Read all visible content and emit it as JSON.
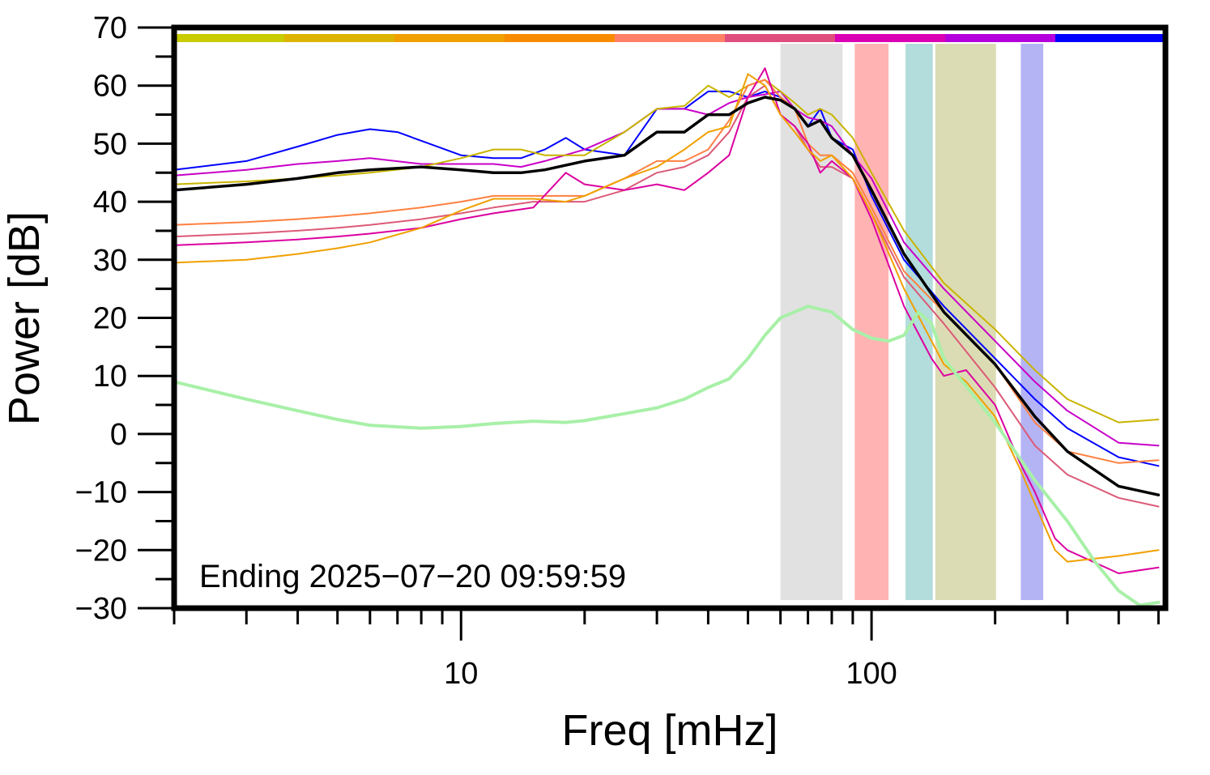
{
  "chart_data": {
    "type": "line",
    "xlabel": "Freq [mHz]",
    "ylabel": "Power [dB]",
    "x_scale": "log",
    "xlim": [
      2,
      520
    ],
    "ylim": [
      -30,
      70
    ],
    "x_ticks_major": [
      10,
      100
    ],
    "x_ticks_minor": [
      2,
      3,
      4,
      5,
      6,
      7,
      8,
      9,
      20,
      30,
      40,
      50,
      60,
      70,
      80,
      90,
      200,
      300,
      400,
      500
    ],
    "x_tick_labels": [
      "10",
      "100"
    ],
    "y_ticks": [
      -30,
      -20,
      -10,
      0,
      10,
      20,
      30,
      40,
      50,
      60,
      70
    ],
    "y_tick_labels": [
      "−30",
      "−20",
      "−10",
      "0",
      "10",
      "20",
      "30",
      "40",
      "50",
      "60",
      "70"
    ],
    "grid": false,
    "annotation": "Ending 2025−07−20 09:59:59",
    "color_bar": [
      "#c8cc00",
      "#ddb400",
      "#f0a000",
      "#f78c00",
      "#ff8066",
      "#e04e7e",
      "#dc00b4",
      "#b400dc",
      "#0000ff"
    ],
    "bands": [
      {
        "x0": 60,
        "x1": 85,
        "color": "#e1e1e1"
      },
      {
        "x0": 91,
        "x1": 110,
        "color": "#ffb3b3"
      },
      {
        "x0": 121,
        "x1": 141,
        "color": "#b3dcdc"
      },
      {
        "x0": 143,
        "x1": 201,
        "color": "#dcdcb4"
      },
      {
        "x0": 231,
        "x1": 262,
        "color": "#b4b4f5"
      }
    ],
    "series": [
      {
        "color": "#0000ff",
        "width": 2,
        "points": [
          [
            2,
            45.5
          ],
          [
            3,
            47
          ],
          [
            4,
            49.5
          ],
          [
            5,
            51.5
          ],
          [
            6,
            52.5
          ],
          [
            7,
            52
          ],
          [
            8,
            50.5
          ],
          [
            10,
            48
          ],
          [
            12,
            47.5
          ],
          [
            14,
            47.5
          ],
          [
            16,
            49
          ],
          [
            18,
            51
          ],
          [
            20,
            49
          ],
          [
            25,
            48
          ],
          [
            30,
            56
          ],
          [
            35,
            56
          ],
          [
            40,
            59
          ],
          [
            45,
            59
          ],
          [
            50,
            58
          ],
          [
            55,
            59
          ],
          [
            60,
            58
          ],
          [
            65,
            56
          ],
          [
            70,
            53
          ],
          [
            75,
            56
          ],
          [
            80,
            51
          ],
          [
            90,
            49
          ],
          [
            100,
            41
          ],
          [
            120,
            30
          ],
          [
            150,
            22
          ],
          [
            200,
            13
          ],
          [
            250,
            6
          ],
          [
            300,
            1
          ],
          [
            400,
            -4
          ],
          [
            500,
            -5.5
          ]
        ]
      },
      {
        "color": "#c800c8",
        "width": 2,
        "points": [
          [
            2,
            44.5
          ],
          [
            3,
            45.5
          ],
          [
            4,
            46.5
          ],
          [
            5,
            47
          ],
          [
            6,
            47.5
          ],
          [
            8,
            46.5
          ],
          [
            10,
            46.5
          ],
          [
            12,
            46.5
          ],
          [
            14,
            46
          ],
          [
            16,
            47
          ],
          [
            20,
            49
          ],
          [
            25,
            52
          ],
          [
            30,
            56
          ],
          [
            35,
            56
          ],
          [
            40,
            55
          ],
          [
            45,
            57
          ],
          [
            50,
            58
          ],
          [
            55,
            58.5
          ],
          [
            60,
            59
          ],
          [
            65,
            56
          ],
          [
            70,
            54.5
          ],
          [
            75,
            54
          ],
          [
            80,
            53
          ],
          [
            90,
            48
          ],
          [
            100,
            44
          ],
          [
            120,
            33
          ],
          [
            150,
            25
          ],
          [
            200,
            16
          ],
          [
            250,
            9
          ],
          [
            300,
            4
          ],
          [
            400,
            -1.5
          ],
          [
            500,
            -2
          ]
        ]
      },
      {
        "color": "#c8b400",
        "width": 2,
        "points": [
          [
            2,
            43
          ],
          [
            3,
            43.5
          ],
          [
            4,
            44
          ],
          [
            5,
            44.5
          ],
          [
            6,
            45
          ],
          [
            8,
            46
          ],
          [
            10,
            47.5
          ],
          [
            12,
            49
          ],
          [
            14,
            49
          ],
          [
            16,
            48
          ],
          [
            20,
            48
          ],
          [
            25,
            52
          ],
          [
            30,
            56
          ],
          [
            35,
            56.5
          ],
          [
            40,
            60
          ],
          [
            45,
            58
          ],
          [
            50,
            60
          ],
          [
            55,
            61
          ],
          [
            60,
            59
          ],
          [
            65,
            57
          ],
          [
            70,
            55
          ],
          [
            75,
            56
          ],
          [
            80,
            55
          ],
          [
            90,
            51
          ],
          [
            100,
            45
          ],
          [
            120,
            35
          ],
          [
            150,
            26
          ],
          [
            200,
            18
          ],
          [
            250,
            11
          ],
          [
            300,
            6
          ],
          [
            400,
            2
          ],
          [
            500,
            2.5
          ]
        ]
      },
      {
        "color": "#ff8040",
        "width": 2,
        "points": [
          [
            2,
            36
          ],
          [
            3,
            36.5
          ],
          [
            4,
            37
          ],
          [
            5,
            37.5
          ],
          [
            6,
            38
          ],
          [
            8,
            39
          ],
          [
            10,
            40
          ],
          [
            12,
            41
          ],
          [
            15,
            41
          ],
          [
            20,
            41
          ],
          [
            25,
            44
          ],
          [
            30,
            47
          ],
          [
            35,
            47
          ],
          [
            40,
            49
          ],
          [
            45,
            54
          ],
          [
            50,
            60
          ],
          [
            55,
            61
          ],
          [
            60,
            58
          ],
          [
            65,
            56
          ],
          [
            70,
            50
          ],
          [
            75,
            48
          ],
          [
            80,
            48
          ],
          [
            90,
            45
          ],
          [
            100,
            39
          ],
          [
            120,
            28
          ],
          [
            150,
            21
          ],
          [
            200,
            12
          ],
          [
            250,
            2
          ],
          [
            300,
            -3
          ],
          [
            400,
            -5
          ],
          [
            500,
            -4.5
          ]
        ]
      },
      {
        "color": "#dc5a78",
        "width": 2,
        "points": [
          [
            2,
            34
          ],
          [
            3,
            34.5
          ],
          [
            4,
            35
          ],
          [
            5,
            35.5
          ],
          [
            6,
            36
          ],
          [
            8,
            37
          ],
          [
            10,
            38
          ],
          [
            12,
            39
          ],
          [
            15,
            40
          ],
          [
            20,
            40
          ],
          [
            25,
            42
          ],
          [
            30,
            45
          ],
          [
            35,
            46
          ],
          [
            40,
            48
          ],
          [
            45,
            52
          ],
          [
            50,
            58
          ],
          [
            55,
            60
          ],
          [
            60,
            55
          ],
          [
            65,
            53
          ],
          [
            70,
            49
          ],
          [
            75,
            46
          ],
          [
            80,
            46
          ],
          [
            90,
            44
          ],
          [
            100,
            38
          ],
          [
            120,
            27
          ],
          [
            150,
            19
          ],
          [
            200,
            8
          ],
          [
            250,
            -2
          ],
          [
            300,
            -7
          ],
          [
            400,
            -11
          ],
          [
            500,
            -12.5
          ]
        ]
      },
      {
        "color": "#dc00a0",
        "width": 2,
        "points": [
          [
            2,
            32.5
          ],
          [
            3,
            33
          ],
          [
            4,
            33.5
          ],
          [
            5,
            34
          ],
          [
            6,
            34.5
          ],
          [
            8,
            35.5
          ],
          [
            10,
            37
          ],
          [
            12,
            38
          ],
          [
            15,
            39
          ],
          [
            18,
            45
          ],
          [
            20,
            43
          ],
          [
            25,
            42
          ],
          [
            30,
            43
          ],
          [
            35,
            42
          ],
          [
            40,
            45
          ],
          [
            45,
            48
          ],
          [
            50,
            58
          ],
          [
            55,
            63
          ],
          [
            60,
            55
          ],
          [
            65,
            53
          ],
          [
            70,
            50
          ],
          [
            75,
            45
          ],
          [
            80,
            47
          ],
          [
            90,
            44
          ],
          [
            100,
            37
          ],
          [
            120,
            22
          ],
          [
            140,
            13
          ],
          [
            150,
            10
          ],
          [
            170,
            11
          ],
          [
            200,
            5
          ],
          [
            230,
            -5
          ],
          [
            250,
            -10
          ],
          [
            280,
            -18
          ],
          [
            300,
            -20
          ],
          [
            400,
            -24
          ],
          [
            500,
            -23
          ]
        ]
      },
      {
        "color": "#f0a000",
        "width": 2,
        "points": [
          [
            2,
            29.5
          ],
          [
            3,
            30
          ],
          [
            4,
            31
          ],
          [
            5,
            32
          ],
          [
            6,
            33
          ],
          [
            8,
            35.5
          ],
          [
            10,
            38.5
          ],
          [
            12,
            40.5
          ],
          [
            15,
            40.5
          ],
          [
            18,
            40
          ],
          [
            20,
            41
          ],
          [
            25,
            44
          ],
          [
            30,
            46
          ],
          [
            35,
            49
          ],
          [
            40,
            52
          ],
          [
            45,
            53
          ],
          [
            50,
            62
          ],
          [
            55,
            60
          ],
          [
            60,
            55
          ],
          [
            65,
            52
          ],
          [
            70,
            49
          ],
          [
            75,
            47
          ],
          [
            80,
            48
          ],
          [
            90,
            44
          ],
          [
            100,
            38
          ],
          [
            120,
            25
          ],
          [
            140,
            16
          ],
          [
            150,
            12
          ],
          [
            170,
            9
          ],
          [
            200,
            3
          ],
          [
            230,
            -6
          ],
          [
            250,
            -12
          ],
          [
            280,
            -20
          ],
          [
            300,
            -22
          ],
          [
            400,
            -21
          ],
          [
            500,
            -20
          ]
        ]
      },
      {
        "color": "#000000",
        "width": 3.5,
        "points": [
          [
            2,
            42
          ],
          [
            3,
            43
          ],
          [
            4,
            44
          ],
          [
            5,
            45
          ],
          [
            6,
            45.5
          ],
          [
            8,
            46
          ],
          [
            10,
            45.5
          ],
          [
            12,
            45
          ],
          [
            14,
            45
          ],
          [
            16,
            45.5
          ],
          [
            20,
            47
          ],
          [
            25,
            48
          ],
          [
            30,
            52
          ],
          [
            35,
            52
          ],
          [
            40,
            55
          ],
          [
            45,
            55
          ],
          [
            50,
            57
          ],
          [
            55,
            58
          ],
          [
            60,
            57.5
          ],
          [
            65,
            56
          ],
          [
            70,
            53
          ],
          [
            75,
            54
          ],
          [
            80,
            51
          ],
          [
            90,
            48
          ],
          [
            100,
            42
          ],
          [
            120,
            31
          ],
          [
            150,
            21
          ],
          [
            200,
            12
          ],
          [
            250,
            3
          ],
          [
            300,
            -3
          ],
          [
            400,
            -9
          ],
          [
            500,
            -10.5
          ]
        ]
      },
      {
        "color": "#a8f0a8",
        "width": 4,
        "points": [
          [
            2,
            9
          ],
          [
            3,
            6
          ],
          [
            4,
            4
          ],
          [
            5,
            2.5
          ],
          [
            6,
            1.5
          ],
          [
            8,
            1
          ],
          [
            10,
            1.3
          ],
          [
            12,
            1.8
          ],
          [
            15,
            2.2
          ],
          [
            18,
            2
          ],
          [
            20,
            2.3
          ],
          [
            25,
            3.5
          ],
          [
            30,
            4.5
          ],
          [
            35,
            6
          ],
          [
            40,
            8
          ],
          [
            45,
            9.5
          ],
          [
            50,
            13
          ],
          [
            55,
            17
          ],
          [
            60,
            20
          ],
          [
            70,
            22
          ],
          [
            80,
            21
          ],
          [
            90,
            18
          ],
          [
            100,
            16.5
          ],
          [
            110,
            16
          ],
          [
            120,
            17
          ],
          [
            130,
            21
          ],
          [
            140,
            19
          ],
          [
            150,
            13
          ],
          [
            200,
            2
          ],
          [
            250,
            -8
          ],
          [
            300,
            -15
          ],
          [
            350,
            -22
          ],
          [
            400,
            -27
          ],
          [
            450,
            -29.5
          ],
          [
            500,
            -29
          ]
        ]
      }
    ]
  }
}
